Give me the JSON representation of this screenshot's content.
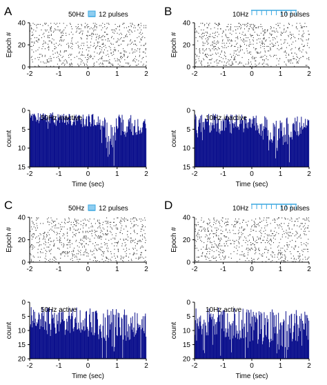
{
  "colors": {
    "bar": "#0a0f8c",
    "raster": "#333333",
    "stim_blue": "#3aa7e0",
    "stim_fill": "#8fcdf0"
  },
  "panels": [
    {
      "letter": "A",
      "stim_label": "50Hz",
      "pulses_label": "12 pulses"
    },
    {
      "letter": "B",
      "stim_label": "10Hz",
      "pulses_label": "10 pulses"
    },
    {
      "letter": "C",
      "stim_label": "50Hz",
      "pulses_label": "12 pulses"
    },
    {
      "letter": "D",
      "stim_label": "10Hz",
      "pulses_label": "10 pulses"
    }
  ],
  "chart_data": [
    {
      "type": "scatter",
      "panel": "A",
      "kind": "raster",
      "ylabel": "Epoch #",
      "xlim": [
        -2,
        2
      ],
      "ylim": [
        40,
        0
      ],
      "x_ticks": [
        "-2",
        "-1",
        "0",
        "1",
        "2"
      ],
      "y_ticks": [
        "0",
        "20",
        "40"
      ],
      "epochs": 40,
      "seed": 11
    },
    {
      "type": "bar",
      "panel": "A",
      "kind": "histogram",
      "annotation": "50Hz inactive",
      "xlabel": "Time (sec)",
      "ylabel": "count",
      "xlim": [
        -2,
        2
      ],
      "ylim": [
        0,
        15
      ],
      "x_ticks": [
        "-2",
        "-1",
        "0",
        "1",
        "2"
      ],
      "y_ticks": [
        "0",
        "5",
        "10",
        "15"
      ],
      "bins": 200,
      "seed": 21,
      "profile": [
        [
          -2,
          2
        ],
        [
          -1.2,
          2
        ],
        [
          -1.1,
          2.6
        ],
        [
          -0.5,
          2.4
        ],
        [
          -0.2,
          2.8
        ],
        [
          0,
          2.6
        ],
        [
          0.3,
          2.6
        ],
        [
          0.45,
          4.5
        ],
        [
          0.6,
          8
        ],
        [
          0.8,
          6
        ],
        [
          1.1,
          4.2
        ],
        [
          1.5,
          3.8
        ],
        [
          2,
          3.5
        ]
      ]
    },
    {
      "type": "scatter",
      "panel": "B",
      "kind": "raster",
      "ylabel": "Epoch #",
      "xlim": [
        -2,
        2
      ],
      "ylim": [
        40,
        0
      ],
      "x_ticks": [
        "-2",
        "-1",
        "0",
        "1",
        "2"
      ],
      "y_ticks": [
        "0",
        "20",
        "40"
      ],
      "epochs": 40,
      "seed": 12
    },
    {
      "type": "bar",
      "panel": "B",
      "kind": "histogram",
      "annotation": "10Hz inactive",
      "xlabel": "Time (sec)",
      "ylabel": "count",
      "xlim": [
        -2,
        2
      ],
      "ylim": [
        0,
        15
      ],
      "x_ticks": [
        "-2",
        "-1",
        "0",
        "1",
        "2"
      ],
      "y_ticks": [
        "0",
        "5",
        "10",
        "15"
      ],
      "bins": 200,
      "seed": 22,
      "profile": [
        [
          -2,
          3.2
        ],
        [
          -1.8,
          4.2
        ],
        [
          -1.3,
          3.4
        ],
        [
          -0.5,
          3.6
        ],
        [
          0,
          3.2
        ],
        [
          0.2,
          3.2
        ],
        [
          0.45,
          5
        ],
        [
          0.8,
          7.5
        ],
        [
          1.0,
          6.5
        ],
        [
          1.4,
          4.5
        ],
        [
          2,
          3.5
        ]
      ]
    },
    {
      "type": "scatter",
      "panel": "C",
      "kind": "raster",
      "ylabel": "Epoch #",
      "xlim": [
        -2,
        2
      ],
      "ylim": [
        40,
        0
      ],
      "x_ticks": [
        "-2",
        "-1",
        "0",
        "1",
        "2"
      ],
      "y_ticks": [
        "0",
        "20",
        "40"
      ],
      "epochs": 40,
      "seed": 13
    },
    {
      "type": "bar",
      "panel": "C",
      "kind": "histogram",
      "annotation": "50Hz active",
      "xlabel": "Time (sec)",
      "ylabel": "count",
      "xlim": [
        -2,
        2
      ],
      "ylim": [
        0,
        20
      ],
      "x_ticks": [
        "-2",
        "-1",
        "0",
        "1",
        "2"
      ],
      "y_ticks": [
        "0",
        "5",
        "10",
        "15",
        "20"
      ],
      "bins": 200,
      "seed": 23,
      "profile": [
        [
          -2,
          6.5
        ],
        [
          -1,
          7
        ],
        [
          0,
          7.5
        ],
        [
          0.5,
          8.5
        ],
        [
          1,
          8
        ],
        [
          2,
          7.5
        ]
      ]
    },
    {
      "type": "scatter",
      "panel": "D",
      "kind": "raster",
      "ylabel": "Epoch #",
      "xlim": [
        -2,
        2
      ],
      "ylim": [
        40,
        0
      ],
      "x_ticks": [
        "-2",
        "-1",
        "0",
        "1",
        "2"
      ],
      "y_ticks": [
        "0",
        "20",
        "40"
      ],
      "epochs": 40,
      "seed": 14
    },
    {
      "type": "bar",
      "panel": "D",
      "kind": "histogram",
      "annotation": "10Hz active",
      "xlabel": "Time (sec)",
      "ylabel": "count",
      "xlim": [
        -2,
        2
      ],
      "ylim": [
        0,
        20
      ],
      "x_ticks": [
        "-2",
        "-1",
        "0",
        "1",
        "2"
      ],
      "y_ticks": [
        "0",
        "5",
        "10",
        "15",
        "20"
      ],
      "bins": 200,
      "seed": 24,
      "profile": [
        [
          -2,
          7
        ],
        [
          -1,
          7.5
        ],
        [
          0,
          8
        ],
        [
          0.5,
          9
        ],
        [
          1.2,
          10
        ],
        [
          1.6,
          9
        ],
        [
          2,
          8.5
        ]
      ]
    }
  ]
}
